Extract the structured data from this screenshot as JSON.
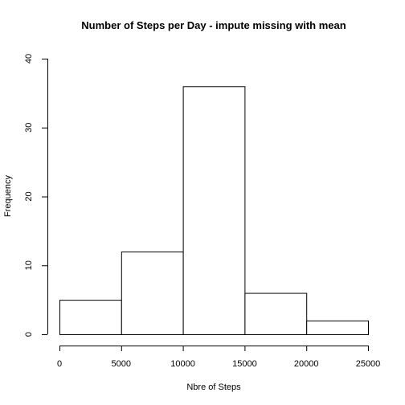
{
  "chart_data": {
    "type": "bar",
    "title": "Number of Steps per Day - impute missing with mean",
    "xlabel": "Nbre of Steps",
    "ylabel": "Frequency",
    "bins": [
      {
        "from": 0,
        "to": 5000,
        "count": 5
      },
      {
        "from": 5000,
        "to": 10000,
        "count": 12
      },
      {
        "from": 10000,
        "to": 15000,
        "count": 36
      },
      {
        "from": 15000,
        "to": 20000,
        "count": 6
      },
      {
        "from": 20000,
        "to": 25000,
        "count": 2
      }
    ],
    "xlim": [
      0,
      25000
    ],
    "ylim": [
      0,
      40
    ],
    "x_ticks": [
      0,
      5000,
      10000,
      15000,
      20000,
      25000
    ],
    "x_tick_labels": [
      "0",
      "5000",
      "10000",
      "15000",
      "20000",
      "25000"
    ],
    "y_ticks": [
      0,
      10,
      20,
      30,
      40
    ],
    "y_tick_labels": [
      "0",
      "10",
      "20",
      "30",
      "40"
    ],
    "grid": false,
    "legend": "none"
  }
}
